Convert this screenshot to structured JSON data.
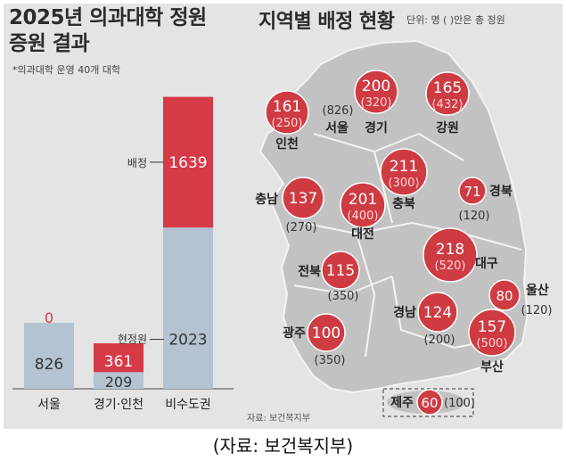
{
  "left_title_line1": "2025년 의과대학 정원",
  "left_title_line2": "증원 결과",
  "left_note": "*의과대학 운영 40개 대학",
  "right_title": "지역별 배정 현황",
  "unit_note": "단위: 명 ( )안은 총 정원",
  "source_small": "자료: 보건복지부",
  "caption": "(자료: 보건복지부)",
  "colors": {
    "current": "#b3c3d1",
    "added": "#d63a47",
    "bubble": "#cf3b43",
    "map_land": "#c2c2c2",
    "panel_bg": "#e4e4e4"
  },
  "chart_data": [
    {
      "type": "bar",
      "stacked": true,
      "categories": [
        "서울",
        "경기·인천",
        "비수도권"
      ],
      "series": [
        {
          "name": "현정원",
          "values": [
            826,
            209,
            2023
          ]
        },
        {
          "name": "배정",
          "values": [
            0,
            361,
            1639
          ]
        }
      ],
      "value_labels": {
        "current": [
          "826",
          "209",
          "2023"
        ],
        "added": [
          "0",
          "361",
          "1639"
        ]
      },
      "annotations": [
        "배정",
        "현정원"
      ]
    },
    {
      "type": "scatter",
      "kind": "bubble-map",
      "regions": [
        {
          "name": "인천",
          "added": "161",
          "total": "(250)"
        },
        {
          "name": "서울",
          "added": "",
          "total": "(826)"
        },
        {
          "name": "경기",
          "added": "200",
          "total": "(320)"
        },
        {
          "name": "강원",
          "added": "165",
          "total": "(432)"
        },
        {
          "name": "충남",
          "added": "137",
          "total": "(270)"
        },
        {
          "name": "대전",
          "added": "201",
          "total": "(400)"
        },
        {
          "name": "충북",
          "added": "211",
          "total": "(300)"
        },
        {
          "name": "경북",
          "added": "71",
          "total": "(120)"
        },
        {
          "name": "전북",
          "added": "115",
          "total": "(350)"
        },
        {
          "name": "대구",
          "added": "218",
          "total": "(520)"
        },
        {
          "name": "울산",
          "added": "80",
          "total": "(120)"
        },
        {
          "name": "경남",
          "added": "124",
          "total": "(200)"
        },
        {
          "name": "광주",
          "added": "100",
          "total": "(350)"
        },
        {
          "name": "부산",
          "added": "157",
          "total": "(500)"
        },
        {
          "name": "제주",
          "added": "60",
          "total": "(100)"
        }
      ]
    }
  ]
}
